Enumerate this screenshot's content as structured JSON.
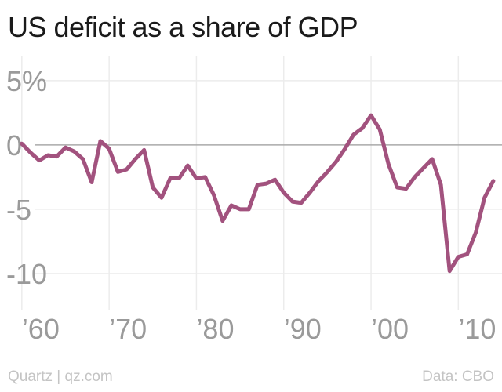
{
  "title": "US deficit as a share of GDP",
  "footer": {
    "source": "Quartz | qz.com",
    "data": "Data: CBO"
  },
  "colors": {
    "line": "#a2527e",
    "zero_line": "#aaaaaa",
    "grid": "#ececec",
    "tick_text": "#9a9a9a"
  },
  "chart_data": {
    "type": "line",
    "title": "US deficit as a share of GDP",
    "xlabel": "",
    "ylabel": "",
    "xlim": [
      1957.5,
      2015
    ],
    "ylim": [
      -12.5,
      7
    ],
    "grid": true,
    "x_ticks": [
      {
        "value": 1960,
        "label": "’60"
      },
      {
        "value": 1970,
        "label": "’70"
      },
      {
        "value": 1980,
        "label": "’80"
      },
      {
        "value": 1990,
        "label": "’90"
      },
      {
        "value": 2000,
        "label": "’00"
      },
      {
        "value": 2010,
        "label": "’10"
      }
    ],
    "y_ticks": [
      {
        "value": 5,
        "label": "5%"
      },
      {
        "value": 0,
        "label": "0"
      },
      {
        "value": -5,
        "label": "-5"
      },
      {
        "value": -10,
        "label": "-10"
      }
    ],
    "series": [
      {
        "x": [
          1960,
          1961,
          1962,
          1963,
          1964,
          1965,
          1966,
          1967,
          1968,
          1969,
          1970,
          1971,
          1972,
          1973,
          1974,
          1975,
          1976,
          1977,
          1978,
          1979,
          1980,
          1981,
          1982,
          1983,
          1984,
          1985,
          1986,
          1987,
          1988,
          1989,
          1990,
          1991,
          1992,
          1993,
          1994,
          1995,
          1996,
          1997,
          1998,
          1999,
          2000,
          2001,
          2002,
          2003,
          2004,
          2005,
          2006,
          2007,
          2008,
          2009,
          2010,
          2011,
          2012,
          2013,
          2014
        ],
        "values": [
          0.1,
          -0.6,
          -1.2,
          -0.8,
          -0.9,
          -0.2,
          -0.5,
          -1.1,
          -2.9,
          0.3,
          -0.3,
          -2.1,
          -1.9,
          -1.1,
          -0.4,
          -3.3,
          -4.1,
          -2.6,
          -2.6,
          -1.6,
          -2.6,
          -2.5,
          -3.9,
          -5.9,
          -4.7,
          -5.0,
          -5.0,
          -3.1,
          -3.0,
          -2.7,
          -3.7,
          -4.4,
          -4.5,
          -3.7,
          -2.8,
          -2.1,
          -1.3,
          -0.3,
          0.8,
          1.3,
          2.3,
          1.2,
          -1.5,
          -3.3,
          -3.4,
          -2.5,
          -1.8,
          -1.1,
          -3.1,
          -9.8,
          -8.7,
          -8.5,
          -6.8,
          -4.1,
          -2.8
        ]
      }
    ]
  }
}
